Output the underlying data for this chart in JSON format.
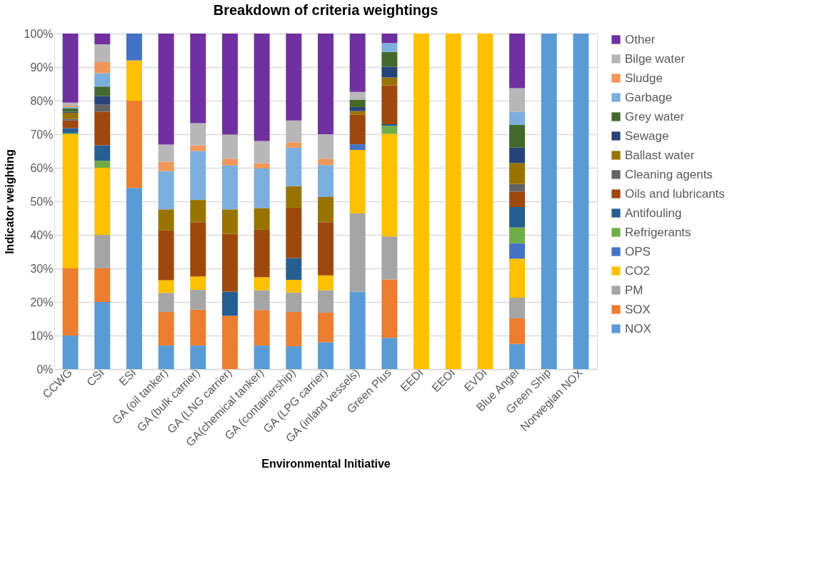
{
  "chart_data": {
    "type": "bar",
    "stacked": true,
    "title": "Breakdown of criteria weightings",
    "xlabel": "Environmental Initiative",
    "ylabel": "Indicator weighting",
    "categories": [
      "CCWG",
      "CSI",
      "ESI",
      "GA (oil tanker)",
      "GA (bulk carrier)",
      "GA (LNG carrier)",
      "GA(chemical tanker)",
      "GA (containership)",
      "GA (LPG carrier)",
      "GA (inland vessels)",
      "Green Plus",
      "EEDI",
      "EEOI",
      "EVDI",
      "Blue Angel",
      "Green Ship",
      "Norwegian NOX"
    ],
    "ylim": [
      0,
      100
    ],
    "yticks": [
      {
        "value": 0,
        "label": "0%"
      },
      {
        "value": 10,
        "label": "10%"
      },
      {
        "value": 20,
        "label": "20%"
      },
      {
        "value": 30,
        "label": "30%"
      },
      {
        "value": 40,
        "label": "40%"
      },
      {
        "value": 50,
        "label": "50%"
      },
      {
        "value": 60,
        "label": "60%"
      },
      {
        "value": 70,
        "label": "70%"
      },
      {
        "value": 80,
        "label": "80%"
      },
      {
        "value": 90,
        "label": "90%"
      },
      {
        "value": 100,
        "label": "100%"
      }
    ],
    "grid": "y",
    "legend": "right",
    "series": [
      {
        "name": "NOX",
        "color": "#5b9bd5",
        "values": [
          10,
          20,
          54,
          7,
          7,
          null,
          7,
          6.8,
          8,
          23.1,
          9.3,
          null,
          null,
          null,
          7.5,
          100,
          100
        ]
      },
      {
        "name": "SOX",
        "color": "#ed7d31",
        "values": [
          20,
          10,
          26,
          10,
          10.7,
          15.9,
          10.6,
          10.2,
          8.8,
          null,
          17.4,
          null,
          null,
          null,
          7.6,
          null,
          null
        ]
      },
      {
        "name": "PM",
        "color": "#a5a5a5",
        "values": [
          null,
          10,
          null,
          5.7,
          5.9,
          null,
          5.9,
          5.8,
          6.7,
          23.3,
          12.8,
          null,
          null,
          null,
          6.2,
          null,
          null
        ]
      },
      {
        "name": "CO2",
        "color": "#ffc000",
        "values": [
          40,
          20,
          12,
          3.8,
          4,
          null,
          3.9,
          3.8,
          4.4,
          18.9,
          30.6,
          100,
          100,
          100,
          11.6,
          null,
          null
        ]
      },
      {
        "name": "OPS",
        "color": "#4472c4",
        "values": [
          null,
          null,
          8,
          null,
          null,
          null,
          null,
          null,
          null,
          1.7,
          null,
          null,
          null,
          null,
          4.6,
          null,
          null
        ]
      },
      {
        "name": "Refrigerants",
        "color": "#70ad47",
        "values": [
          0.3,
          2.1,
          null,
          null,
          null,
          null,
          null,
          null,
          null,
          null,
          2.4,
          null,
          null,
          null,
          4.7,
          null,
          null
        ]
      },
      {
        "name": "Antifouling",
        "color": "#255e91",
        "values": [
          1.5,
          4.6,
          null,
          null,
          null,
          7.2,
          null,
          6.5,
          null,
          null,
          0.5,
          null,
          null,
          null,
          6.1,
          null,
          null
        ]
      },
      {
        "name": "Oils and lubricants",
        "color": "#9e480e",
        "values": [
          2.3,
          10,
          null,
          14.8,
          16.2,
          17.2,
          14.1,
          15,
          15.9,
          8.8,
          11.6,
          null,
          null,
          null,
          4.6,
          null,
          null
        ]
      },
      {
        "name": "Cleaning agents",
        "color": "#636363",
        "values": [
          0.5,
          2.1,
          null,
          null,
          null,
          null,
          null,
          null,
          null,
          null,
          null,
          null,
          null,
          null,
          2.3,
          null,
          null
        ]
      },
      {
        "name": "Ballast water",
        "color": "#997300",
        "values": [
          1.8,
          null,
          null,
          6.3,
          6.6,
          7.3,
          6.5,
          6.4,
          7.5,
          1.1,
          2.3,
          null,
          null,
          null,
          6.2,
          null,
          null
        ]
      },
      {
        "name": "Sewage",
        "color": "#264478",
        "values": [
          0.3,
          2.6,
          null,
          null,
          null,
          null,
          null,
          null,
          null,
          1.2,
          3.2,
          null,
          null,
          null,
          4.6,
          null,
          null
        ]
      },
      {
        "name": "Grey water",
        "color": "#43682b",
        "values": [
          1,
          2.8,
          null,
          null,
          null,
          null,
          null,
          null,
          null,
          2.2,
          4.4,
          null,
          null,
          null,
          6.8,
          null,
          null
        ]
      },
      {
        "name": "Garbage",
        "color": "#7cafdd",
        "values": [
          0.4,
          4,
          null,
          11.4,
          14.6,
          13.1,
          11.8,
          11.5,
          9.5,
          null,
          2.7,
          null,
          null,
          null,
          3.9,
          null,
          null
        ]
      },
      {
        "name": "Sludge",
        "color": "#f1975a",
        "values": [
          0.4,
          3.3,
          null,
          2.8,
          1.7,
          2,
          1.6,
          1.6,
          1.9,
          null,
          null,
          null,
          null,
          null,
          null,
          null,
          null
        ]
      },
      {
        "name": "Bilge water",
        "color": "#b7b7b7",
        "values": [
          0.9,
          5.3,
          null,
          5.1,
          6.6,
          7.2,
          6.6,
          6.5,
          7.3,
          2.3,
          null,
          null,
          null,
          null,
          7,
          null,
          null
        ]
      },
      {
        "name": "Other",
        "color": "#7030a0",
        "values": [
          20.6,
          3.2,
          null,
          33.1,
          26.7,
          30.1,
          32,
          25.9,
          30,
          17.4,
          2.8,
          null,
          null,
          null,
          16.3,
          null,
          null
        ]
      }
    ]
  }
}
